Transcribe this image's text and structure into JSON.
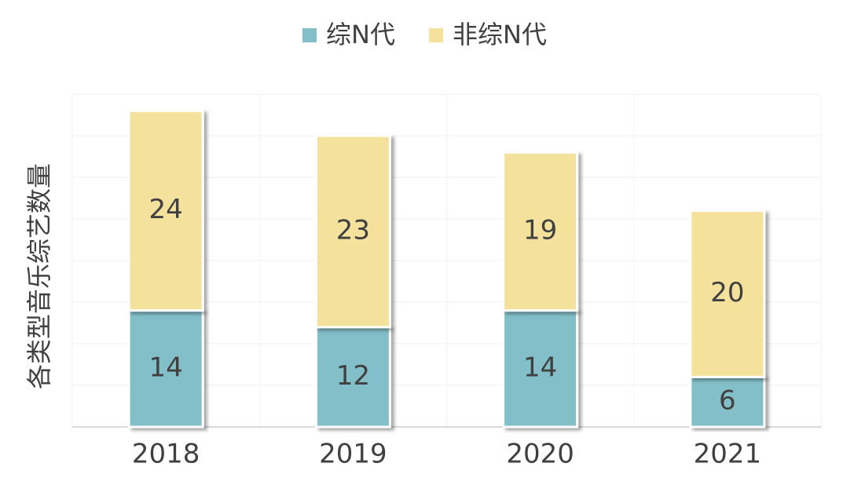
{
  "chart_data": {
    "type": "stacked-bar",
    "y_label": "各类型音乐综艺数量",
    "categories": [
      "2018",
      "2019",
      "2020",
      "2021"
    ],
    "series": [
      {
        "name": "综N代",
        "color": "#82bfc8",
        "values": [
          14,
          12,
          14,
          6
        ]
      },
      {
        "name": "非综N代",
        "color": "#f3e19c",
        "values": [
          24,
          23,
          19,
          20
        ]
      }
    ],
    "ylim": [
      0,
      40
    ],
    "yticks": [
      0,
      5,
      10,
      15,
      20,
      25,
      30,
      35,
      40
    ],
    "grid": true,
    "legend": "top"
  }
}
